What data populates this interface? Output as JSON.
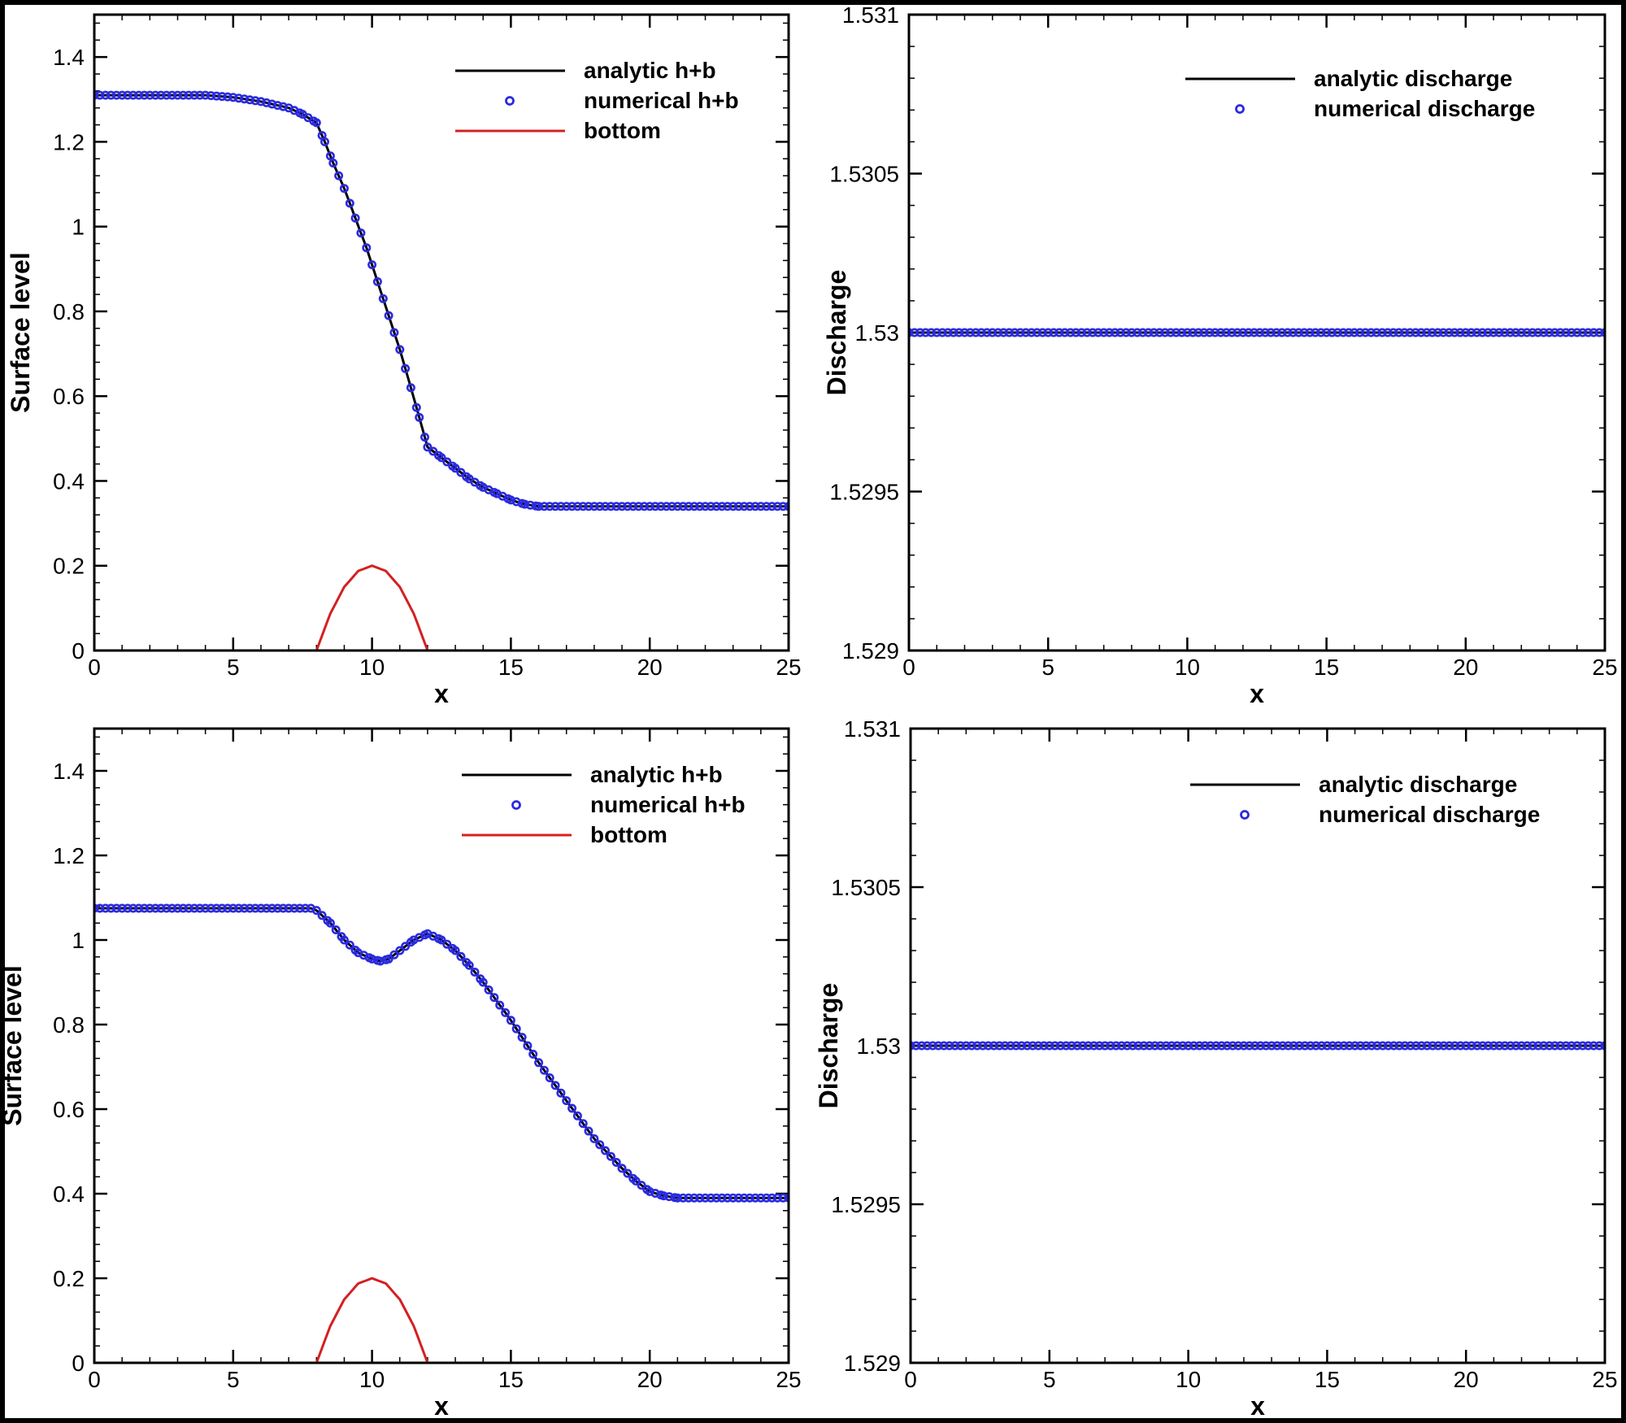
{
  "chart_data": [
    {
      "type": "line",
      "panel": "top-left",
      "xlabel": "x",
      "ylabel": "Surface level",
      "xlim": [
        0,
        25
      ],
      "ylim": [
        0,
        1.5
      ],
      "xticks": [
        "0",
        "5",
        "10",
        "15",
        "20",
        "25"
      ],
      "yticks": [
        "0",
        "0.2",
        "0.4",
        "0.6",
        "0.8",
        "1",
        "1.2",
        "1.4"
      ],
      "legend_position": "top-right",
      "series": [
        {
          "name": "analytic h+b",
          "style": "line",
          "color": "#000000",
          "x": [
            0,
            2,
            4,
            5,
            6,
            7,
            7.5,
            8,
            8.3,
            8.6,
            9,
            9.4,
            9.8,
            10.2,
            10.6,
            11,
            11.4,
            11.7,
            12,
            12.5,
            13,
            13.5,
            14,
            14.5,
            15,
            15.5,
            16,
            17,
            18,
            20,
            22,
            25
          ],
          "y": [
            1.31,
            1.31,
            1.31,
            1.305,
            1.295,
            1.28,
            1.265,
            1.245,
            1.2,
            1.15,
            1.09,
            1.02,
            0.95,
            0.87,
            0.79,
            0.71,
            0.62,
            0.55,
            0.48,
            0.455,
            0.43,
            0.405,
            0.385,
            0.37,
            0.355,
            0.345,
            0.34,
            0.34,
            0.34,
            0.34,
            0.34,
            0.34
          ]
        },
        {
          "name": "numerical h+b",
          "style": "markers",
          "color": "#2a2ae0",
          "x": [
            0,
            2,
            4,
            5,
            6,
            7,
            7.5,
            8,
            8.3,
            8.6,
            9,
            9.4,
            9.8,
            10.2,
            10.6,
            11,
            11.4,
            11.7,
            12,
            12.5,
            13,
            13.5,
            14,
            14.5,
            15,
            15.5,
            16,
            17,
            18,
            20,
            22,
            25
          ],
          "y": [
            1.31,
            1.31,
            1.31,
            1.305,
            1.295,
            1.28,
            1.265,
            1.245,
            1.2,
            1.15,
            1.09,
            1.02,
            0.95,
            0.87,
            0.79,
            0.71,
            0.62,
            0.55,
            0.48,
            0.455,
            0.43,
            0.405,
            0.385,
            0.37,
            0.355,
            0.345,
            0.34,
            0.34,
            0.34,
            0.34,
            0.34,
            0.34
          ]
        },
        {
          "name": "bottom",
          "style": "line",
          "color": "#d42020",
          "x": [
            8,
            8.5,
            9,
            9.5,
            10,
            10.5,
            11,
            11.5,
            12
          ],
          "y": [
            0,
            0.0875,
            0.15,
            0.1875,
            0.2,
            0.1875,
            0.15,
            0.0875,
            0
          ]
        }
      ]
    },
    {
      "type": "line",
      "panel": "top-right",
      "xlabel": "x",
      "ylabel": "Discharge",
      "xlim": [
        0,
        25
      ],
      "ylim": [
        1.529,
        1.531
      ],
      "xticks": [
        "0",
        "5",
        "10",
        "15",
        "20",
        "25"
      ],
      "yticks": [
        "1.529",
        "1.5295",
        "1.53",
        "1.5305",
        "1.531"
      ],
      "legend_position": "top-right",
      "series": [
        {
          "name": "analytic discharge",
          "style": "line",
          "color": "#000000",
          "x": [
            0,
            25
          ],
          "y": [
            1.53,
            1.53
          ]
        },
        {
          "name": "numerical discharge",
          "style": "markers",
          "color": "#2a2ae0",
          "x": [
            0,
            25
          ],
          "y": [
            1.53,
            1.53
          ]
        }
      ]
    },
    {
      "type": "line",
      "panel": "bottom-left",
      "xlabel": "x",
      "ylabel": "Surface level",
      "xlim": [
        0,
        25
      ],
      "ylim": [
        0,
        1.5
      ],
      "xticks": [
        "0",
        "5",
        "10",
        "15",
        "20",
        "25"
      ],
      "yticks": [
        "0",
        "0.2",
        "0.4",
        "0.6",
        "0.8",
        "1",
        "1.2",
        "1.4"
      ],
      "legend_position": "top-right",
      "series": [
        {
          "name": "analytic h+b",
          "style": "line",
          "color": "#000000",
          "x": [
            0,
            2,
            4,
            6,
            7,
            7.8,
            8,
            8.5,
            9,
            9.5,
            10,
            10.3,
            10.6,
            11,
            11.5,
            12,
            12.5,
            13,
            13.5,
            14,
            15,
            16,
            17,
            18,
            19,
            19.5,
            20,
            20.5,
            21,
            22,
            23,
            24,
            25
          ],
          "y": [
            1.075,
            1.075,
            1.075,
            1.075,
            1.075,
            1.075,
            1.07,
            1.04,
            1.0,
            0.97,
            0.955,
            0.95,
            0.955,
            0.975,
            1.0,
            1.015,
            1.0,
            0.975,
            0.94,
            0.9,
            0.81,
            0.71,
            0.62,
            0.53,
            0.46,
            0.43,
            0.405,
            0.395,
            0.39,
            0.39,
            0.39,
            0.39,
            0.39
          ]
        },
        {
          "name": "numerical h+b",
          "style": "markers",
          "color": "#2a2ae0",
          "x": [
            0,
            2,
            4,
            6,
            7,
            7.8,
            8,
            8.5,
            9,
            9.5,
            10,
            10.3,
            10.6,
            11,
            11.5,
            12,
            12.5,
            13,
            13.5,
            14,
            15,
            16,
            17,
            18,
            19,
            19.5,
            20,
            20.5,
            21,
            22,
            23,
            24,
            25
          ],
          "y": [
            1.075,
            1.075,
            1.075,
            1.075,
            1.075,
            1.075,
            1.07,
            1.04,
            1.0,
            0.97,
            0.955,
            0.95,
            0.955,
            0.975,
            1.0,
            1.015,
            1.0,
            0.975,
            0.94,
            0.9,
            0.81,
            0.71,
            0.62,
            0.53,
            0.46,
            0.43,
            0.405,
            0.395,
            0.39,
            0.39,
            0.39,
            0.39,
            0.39
          ]
        },
        {
          "name": "bottom",
          "style": "line",
          "color": "#d42020",
          "x": [
            8,
            8.5,
            9,
            9.5,
            10,
            10.5,
            11,
            11.5,
            12
          ],
          "y": [
            0,
            0.0875,
            0.15,
            0.1875,
            0.2,
            0.1875,
            0.15,
            0.0875,
            0
          ]
        }
      ]
    },
    {
      "type": "line",
      "panel": "bottom-right",
      "xlabel": "x",
      "ylabel": "Discharge",
      "xlim": [
        0,
        25
      ],
      "ylim": [
        1.529,
        1.531
      ],
      "xticks": [
        "0",
        "5",
        "10",
        "15",
        "20",
        "25"
      ],
      "yticks": [
        "1.529",
        "1.5295",
        "1.53",
        "1.5305",
        "1.531"
      ],
      "legend_position": "top-right",
      "series": [
        {
          "name": "analytic discharge",
          "style": "line",
          "color": "#000000",
          "x": [
            0,
            25
          ],
          "y": [
            1.53,
            1.53
          ]
        },
        {
          "name": "numerical discharge",
          "style": "markers",
          "color": "#2a2ae0",
          "x": [
            0,
            25
          ],
          "y": [
            1.53,
            1.53
          ]
        }
      ]
    }
  ]
}
